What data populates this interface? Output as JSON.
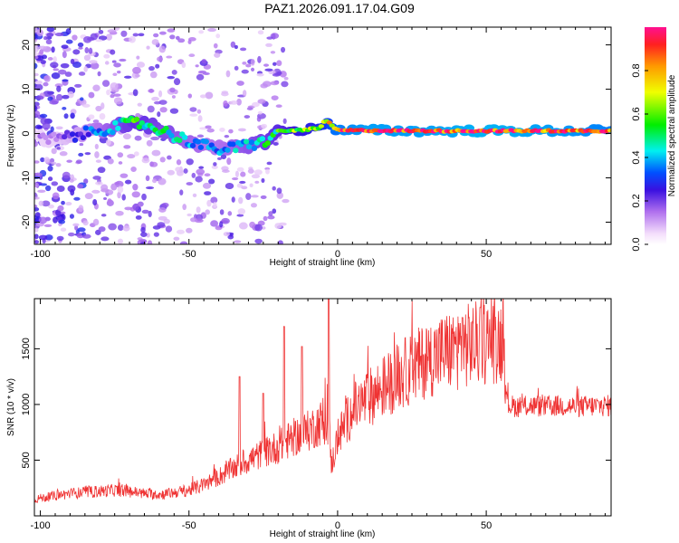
{
  "title": "PAZ1.2026.091.17.04.G09",
  "chart_data": [
    {
      "type": "heatmap",
      "xlabel": "Height of straight line (km)",
      "ylabel": "Frequency (Hz)",
      "xlim": [
        -102,
        92
      ],
      "ylim": [
        -25,
        24
      ],
      "xticks": [
        -100,
        -50,
        0,
        50
      ],
      "yticks": [
        -20,
        -10,
        0,
        10,
        20
      ],
      "colorbar": {
        "label": "Normalized spectral amplitude",
        "range": [
          0,
          1
        ],
        "ticks": [
          "0.0",
          "0.2",
          "0.4",
          "0.6",
          "0.8"
        ]
      },
      "ridge": {
        "x": [
          -95,
          -88,
          -82,
          -75,
          -68,
          -62,
          -55,
          -48,
          -42,
          -36,
          -30,
          -25,
          -20,
          -12,
          -6,
          -4,
          0,
          10,
          30,
          50,
          70,
          92
        ],
        "frequency": [
          -1.2,
          -0.5,
          0.5,
          1.5,
          2.5,
          1.5,
          -0.5,
          -2,
          -3.5,
          -3.5,
          -2.5,
          -2,
          0.5,
          0.8,
          1.2,
          3,
          0.7,
          0.7,
          0.6,
          0.6,
          0.6,
          0.6
        ],
        "amplitude": [
          0.15,
          0.25,
          0.35,
          0.45,
          0.55,
          0.5,
          0.45,
          0.4,
          0.35,
          0.4,
          0.45,
          0.5,
          0.55,
          0.65,
          0.7,
          0.75,
          0.9,
          0.95,
          0.95,
          0.98,
          0.95,
          0.9
        ]
      }
    },
    {
      "type": "line",
      "xlabel": "Height of straight line (km)",
      "ylabel": "SNR (10 * v/v)",
      "xlim": [
        -102,
        92
      ],
      "ylim": [
        0,
        1950
      ],
      "xticks": [
        -100,
        -50,
        0,
        50
      ],
      "yticks": [
        500,
        1000,
        1500
      ],
      "color": "#ef3333",
      "series": [
        {
          "name": "SNR",
          "x": [
            -102,
            -95,
            -90,
            -85,
            -80,
            -75,
            -70,
            -65,
            -60,
            -55,
            -50,
            -45,
            -40,
            -35,
            -30,
            -25,
            -20,
            -15,
            -10,
            -5,
            -3,
            -2,
            0,
            5,
            10,
            15,
            20,
            25,
            30,
            35,
            40,
            45,
            50,
            55,
            56,
            57,
            60,
            65,
            70,
            75,
            80,
            85,
            92
          ],
          "values": [
            150,
            180,
            200,
            210,
            220,
            230,
            220,
            200,
            190,
            210,
            230,
            280,
            350,
            430,
            500,
            560,
            620,
            700,
            760,
            850,
            820,
            450,
            700,
            950,
            1050,
            1150,
            1250,
            1320,
            1400,
            1460,
            1500,
            1540,
            1560,
            1580,
            1560,
            1000,
            980,
            990,
            980,
            990,
            980,
            985,
            990
          ],
          "peaks": [
            {
              "x": -33,
              "value": 1250
            },
            {
              "x": -25,
              "value": 1100
            },
            {
              "x": -18,
              "value": 1700
            },
            {
              "x": -12,
              "value": 1520
            },
            {
              "x": -3,
              "value": 1950
            },
            {
              "x": 42,
              "value": 1780
            },
            {
              "x": 48,
              "value": 1870
            }
          ]
        }
      ]
    }
  ]
}
